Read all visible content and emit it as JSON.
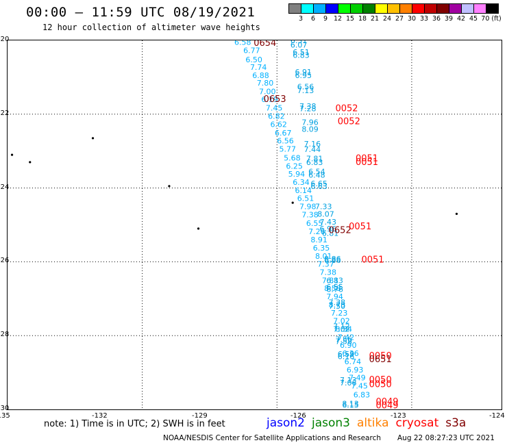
{
  "header": {
    "title": "00:00 – 11:59 UTC 08/19/2021",
    "subtitle": "12 hour collection of altimeter wave heights"
  },
  "colorbar": {
    "colors": [
      "#808080",
      "#00ffff",
      "#00b0ff",
      "#0000ff",
      "#00ff00",
      "#00d000",
      "#008000",
      "#ffff00",
      "#ffc000",
      "#ff8000",
      "#ff0000",
      "#c00000",
      "#800000",
      "#a000a0",
      "#c0c0ff",
      "#ff80ff",
      "#000000"
    ],
    "labels": [
      "3",
      "6",
      "9",
      "12",
      "15",
      "18",
      "21",
      "24",
      "27",
      "30",
      "33",
      "36",
      "39",
      "42",
      "45",
      "70 (ft)"
    ]
  },
  "map": {
    "lon_range": [
      -135,
      -124
    ],
    "lat_range": [
      -30,
      -20
    ],
    "lon_ticks": [
      "-135",
      "-132",
      "-129",
      "-126",
      "-123",
      "-124"
    ],
    "lat_ticks": [
      "-20",
      "-22",
      "-24",
      "-26",
      "-28",
      "-30"
    ],
    "islands": [
      {
        "lon": -133.1,
        "lat": -22.65
      },
      {
        "lon": -134.9,
        "lat": -23.1
      },
      {
        "lon": -134.5,
        "lat": -23.3
      },
      {
        "lon": -131.4,
        "lat": -23.95
      },
      {
        "lon": -130.75,
        "lat": -25.1
      },
      {
        "lon": -128.65,
        "lat": -24.4
      },
      {
        "lon": -125.0,
        "lat": -24.7
      }
    ]
  },
  "track_cyan": [
    {
      "lon": -129.95,
      "lat": -20.05,
      "v": "6.58"
    },
    {
      "lon": -129.75,
      "lat": -20.27,
      "v": "6.77"
    },
    {
      "lon": -129.7,
      "lat": -20.52,
      "v": "6.50"
    },
    {
      "lon": -129.6,
      "lat": -20.72,
      "v": "7.74"
    },
    {
      "lon": -129.55,
      "lat": -20.95,
      "v": "6.88"
    },
    {
      "lon": -129.45,
      "lat": -21.15,
      "v": "7.80"
    },
    {
      "lon": -129.4,
      "lat": -21.38,
      "v": "7.00"
    },
    {
      "lon": -129.35,
      "lat": -21.6,
      "v": "6.19"
    },
    {
      "lon": -129.25,
      "lat": -21.83,
      "v": "7.45"
    },
    {
      "lon": -129.2,
      "lat": -22.05,
      "v": "6.82"
    },
    {
      "lon": -129.15,
      "lat": -22.27,
      "v": "6.62"
    },
    {
      "lon": -129.05,
      "lat": -22.5,
      "v": "6.67"
    },
    {
      "lon": -129.0,
      "lat": -22.72,
      "v": "6.56"
    },
    {
      "lon": -128.95,
      "lat": -22.94,
      "v": "5.77"
    },
    {
      "lon": -128.85,
      "lat": -23.18,
      "v": "5.68"
    },
    {
      "lon": -128.8,
      "lat": -23.4,
      "v": "6.25"
    },
    {
      "lon": -128.75,
      "lat": -23.62,
      "v": "5.94"
    },
    {
      "lon": -128.65,
      "lat": -23.84,
      "v": "6.34"
    },
    {
      "lon": -128.6,
      "lat": -24.06,
      "v": "6.14"
    },
    {
      "lon": -128.55,
      "lat": -24.28,
      "v": "6.51"
    },
    {
      "lon": -128.5,
      "lat": -24.5,
      "v": "7.98"
    },
    {
      "lon": -128.45,
      "lat": -24.72,
      "v": "7.38"
    },
    {
      "lon": -128.35,
      "lat": -24.95,
      "v": "6.55"
    },
    {
      "lon": -128.3,
      "lat": -25.18,
      "v": "7.26"
    },
    {
      "lon": -128.25,
      "lat": -25.4,
      "v": "8.91"
    },
    {
      "lon": -128.2,
      "lat": -25.62,
      "v": "6.35"
    },
    {
      "lon": -128.15,
      "lat": -25.84,
      "v": "8.01"
    },
    {
      "lon": -128.1,
      "lat": -26.06,
      "v": "7.37"
    },
    {
      "lon": -128.05,
      "lat": -26.28,
      "v": "7.38"
    },
    {
      "lon": -128.0,
      "lat": -26.5,
      "v": "7.81"
    },
    {
      "lon": -127.95,
      "lat": -26.72,
      "v": "8.58"
    },
    {
      "lon": -127.9,
      "lat": -26.94,
      "v": "7.94"
    },
    {
      "lon": -127.85,
      "lat": -27.16,
      "v": "8.73"
    },
    {
      "lon": -127.8,
      "lat": -27.38,
      "v": "7.23"
    },
    {
      "lon": -127.75,
      "lat": -27.6,
      "v": "7.02"
    },
    {
      "lon": -127.7,
      "lat": -27.82,
      "v": "8.34"
    },
    {
      "lon": -127.65,
      "lat": -28.04,
      "v": "7.42"
    },
    {
      "lon": -127.6,
      "lat": -28.26,
      "v": "6.90"
    },
    {
      "lon": -127.55,
      "lat": -28.48,
      "v": "6.36"
    },
    {
      "lon": -127.5,
      "lat": -28.7,
      "v": "6.74"
    },
    {
      "lon": -127.45,
      "lat": -28.92,
      "v": "6.93"
    },
    {
      "lon": -127.4,
      "lat": -29.14,
      "v": "7.49"
    },
    {
      "lon": -127.35,
      "lat": -29.36,
      "v": "7.45"
    },
    {
      "lon": -127.3,
      "lat": -29.6,
      "v": "6.83"
    }
  ],
  "track_descend": [
    {
      "lon": -128.7,
      "lat": -20.0,
      "v": "6.31"
    },
    {
      "lon": -128.7,
      "lat": -20.12,
      "v": "6.07"
    },
    {
      "lon": -128.65,
      "lat": -20.32,
      "v": "6.51"
    },
    {
      "lon": -128.65,
      "lat": -20.4,
      "v": "6.83"
    },
    {
      "lon": -128.6,
      "lat": -20.85,
      "v": "6.91"
    },
    {
      "lon": -128.6,
      "lat": -20.95,
      "v": "6.95"
    },
    {
      "lon": -128.55,
      "lat": -21.25,
      "v": "6.56"
    },
    {
      "lon": -128.55,
      "lat": -21.35,
      "v": "7.13"
    },
    {
      "lon": -128.5,
      "lat": -21.78,
      "v": "7.38"
    },
    {
      "lon": -128.5,
      "lat": -21.85,
      "v": "7.28"
    },
    {
      "lon": -128.45,
      "lat": -22.22,
      "v": "7.96"
    },
    {
      "lon": -128.45,
      "lat": -22.4,
      "v": "8.09"
    },
    {
      "lon": -128.4,
      "lat": -22.8,
      "v": "7.16"
    },
    {
      "lon": -128.4,
      "lat": -22.95,
      "v": "7.44"
    },
    {
      "lon": -128.35,
      "lat": -23.2,
      "v": "7.81"
    },
    {
      "lon": -128.35,
      "lat": -23.3,
      "v": "6.83"
    },
    {
      "lon": -128.3,
      "lat": -23.55,
      "v": "6.54"
    },
    {
      "lon": -128.3,
      "lat": -23.65,
      "v": "6.48"
    },
    {
      "lon": -128.25,
      "lat": -23.88,
      "v": "6.65"
    },
    {
      "lon": -128.25,
      "lat": -23.95,
      "v": "6.63"
    },
    {
      "lon": -128.15,
      "lat": -24.5,
      "v": "7.33"
    },
    {
      "lon": -128.1,
      "lat": -24.7,
      "v": "8.07"
    },
    {
      "lon": -128.05,
      "lat": -24.92,
      "v": "7.43"
    },
    {
      "lon": -128.05,
      "lat": -25.1,
      "v": "6.96"
    },
    {
      "lon": -128.0,
      "lat": -25.22,
      "v": "6.81"
    },
    {
      "lon": -127.95,
      "lat": -25.92,
      "v": "8.86"
    },
    {
      "lon": -127.95,
      "lat": -25.96,
      "v": "6.86"
    },
    {
      "lon": -127.9,
      "lat": -26.5,
      "v": "6.83"
    },
    {
      "lon": -127.9,
      "lat": -26.68,
      "v": "6.55"
    },
    {
      "lon": -127.9,
      "lat": -26.74,
      "v": "6.76"
    },
    {
      "lon": -127.85,
      "lat": -27.1,
      "v": "7.38"
    },
    {
      "lon": -127.85,
      "lat": -27.2,
      "v": "7.50"
    },
    {
      "lon": -127.75,
      "lat": -27.75,
      "v": "7.12"
    },
    {
      "lon": -127.75,
      "lat": -27.82,
      "v": "7.02"
    },
    {
      "lon": -127.7,
      "lat": -28.1,
      "v": "7.56"
    },
    {
      "lon": -127.7,
      "lat": -28.15,
      "v": "7.58"
    },
    {
      "lon": -127.65,
      "lat": -28.5,
      "v": "6.59"
    },
    {
      "lon": -127.65,
      "lat": -28.56,
      "v": "6.16"
    },
    {
      "lon": -127.6,
      "lat": -29.2,
      "v": "7.13"
    },
    {
      "lon": -127.6,
      "lat": -29.28,
      "v": "7.06"
    },
    {
      "lon": -127.55,
      "lat": -29.84,
      "v": "8.13"
    },
    {
      "lon": -127.55,
      "lat": -29.88,
      "v": "6.15"
    }
  ],
  "time_labels": [
    {
      "lon": -129.52,
      "lat": -20.07,
      "t": "0654",
      "c": "#800000"
    },
    {
      "lon": -129.3,
      "lat": -21.6,
      "t": "0653",
      "c": "#800000"
    },
    {
      "lon": -127.7,
      "lat": -21.85,
      "t": "0052",
      "c": "#ff0000"
    },
    {
      "lon": -127.65,
      "lat": -22.2,
      "t": "0052",
      "c": "#ff0000"
    },
    {
      "lon": -127.25,
      "lat": -23.2,
      "t": "0051",
      "c": "#ff0000"
    },
    {
      "lon": -127.25,
      "lat": -23.3,
      "t": "0051",
      "c": "#ff0000"
    },
    {
      "lon": -127.85,
      "lat": -25.15,
      "t": "0652",
      "c": "#800000"
    },
    {
      "lon": -127.4,
      "lat": -25.05,
      "t": "0051",
      "c": "#ff0000"
    },
    {
      "lon": -127.12,
      "lat": -25.95,
      "t": "0051",
      "c": "#ff0000"
    },
    {
      "lon": -126.95,
      "lat": -28.55,
      "t": "0050",
      "c": "#ff0000"
    },
    {
      "lon": -126.95,
      "lat": -28.65,
      "t": "0651",
      "c": "#800000"
    },
    {
      "lon": -126.95,
      "lat": -29.2,
      "t": "0050",
      "c": "#ff0000"
    },
    {
      "lon": -126.95,
      "lat": -29.32,
      "t": "0050",
      "c": "#ff0000"
    },
    {
      "lon": -126.8,
      "lat": -29.8,
      "t": "0049",
      "c": "#ff0000"
    },
    {
      "lon": -126.8,
      "lat": -29.9,
      "t": "0049",
      "c": "#ff0000"
    }
  ],
  "footer": {
    "note": "note:  1) Time is in UTC;  2) SWH is in feet",
    "satellites": [
      {
        "name": "jason2",
        "color": "#0000ff"
      },
      {
        "name": "jason3",
        "color": "#008000"
      },
      {
        "name": "altika",
        "color": "#ff8000"
      },
      {
        "name": "cryosat",
        "color": "#ff0000"
      },
      {
        "name": "s3a",
        "color": "#800000"
      }
    ],
    "credit": "NOAA/NESDIS Center for Satellite Applications and Research",
    "timestamp": "Aug 22 08:27:23 UTC 2021"
  },
  "colors": {
    "track_cyan": "#00b0ff",
    "track_blue": "#00a0e0"
  }
}
